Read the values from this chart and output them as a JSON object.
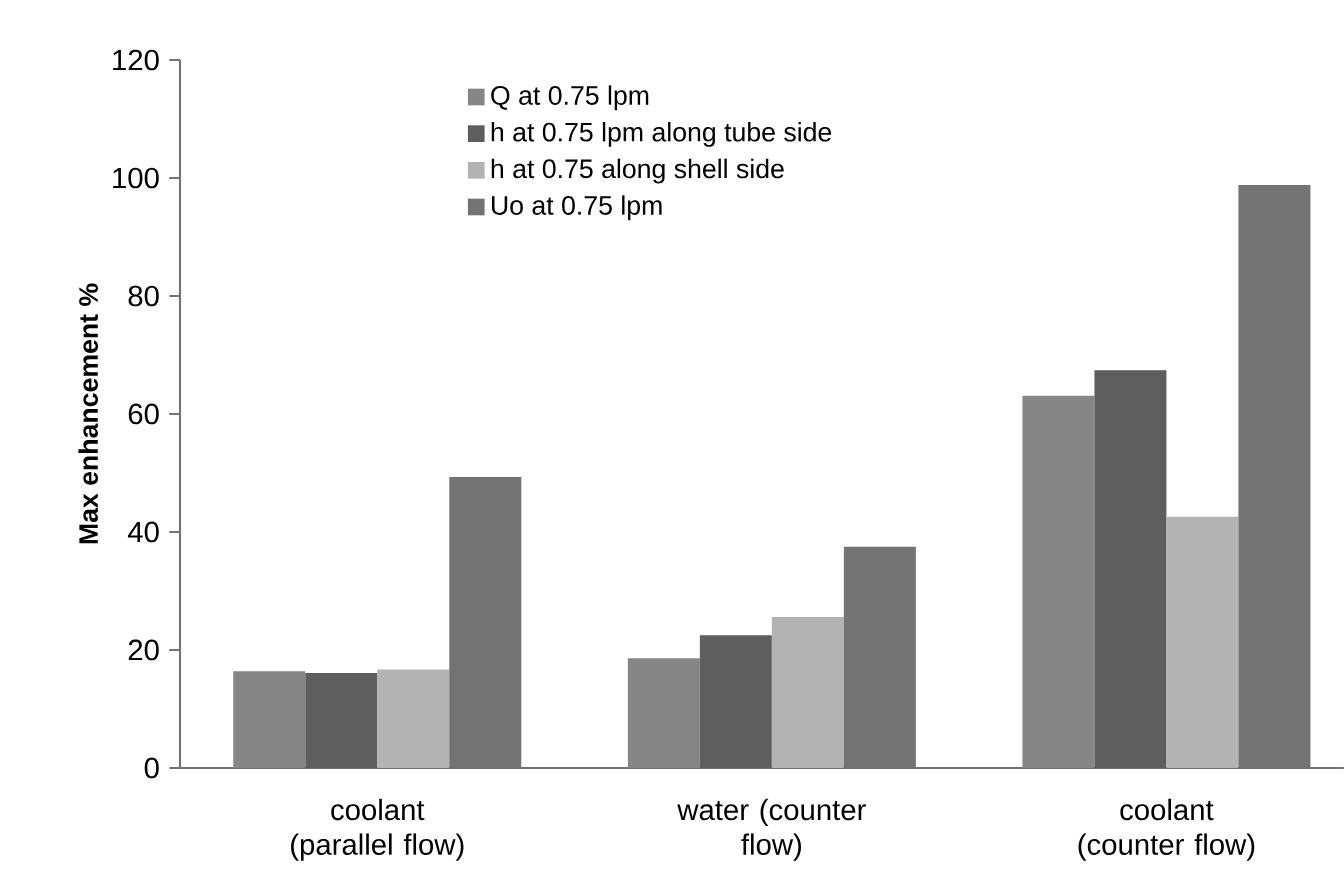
{
  "chart_data": {
    "type": "bar",
    "ylabel": "Max enhancement %",
    "categories": [
      "coolant (parallel flow)",
      "water (counter flow)",
      "coolant (counter flow)"
    ],
    "series": [
      {
        "name": "Q at 0.75 lpm",
        "color": "#868686",
        "values": [
          16.4,
          18.6,
          63.1
        ]
      },
      {
        "name": "h at 0.75 lpm along tube side",
        "color": "#5e5e5e",
        "values": [
          16.1,
          22.5,
          67.4
        ]
      },
      {
        "name": "h at 0.75 along shell side",
        "color": "#b3b3b3",
        "values": [
          16.7,
          25.6,
          42.6
        ]
      },
      {
        "name": "Uo at 0.75 lpm",
        "color": "#737373",
        "values": [
          49.3,
          37.5,
          98.8
        ]
      }
    ],
    "ylim": [
      0,
      120
    ],
    "yticks": [
      0,
      20,
      40,
      60,
      80,
      100,
      120
    ],
    "legend": "top"
  }
}
